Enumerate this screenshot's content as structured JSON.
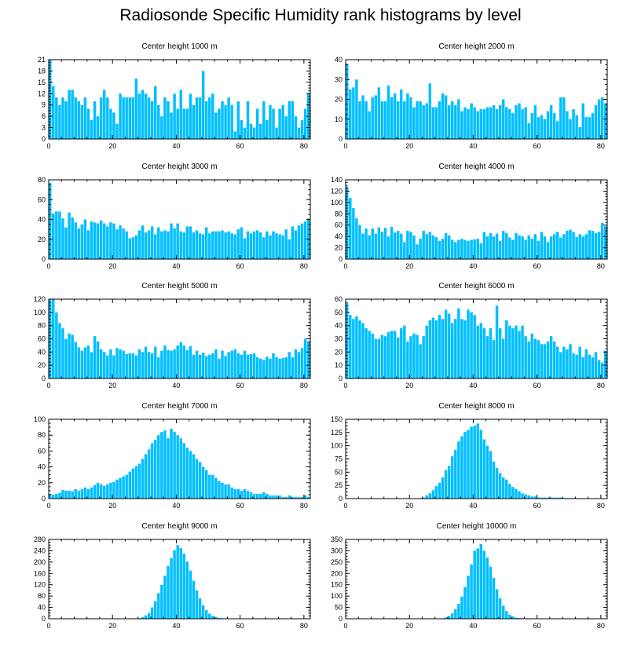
{
  "page_title": "Radiosonde Specific Humidity rank histograms by level",
  "bar_color": "#00BFFF",
  "axis_color": "#000000",
  "chart_data": [
    {
      "type": "bar",
      "title": "Center height 1000 m",
      "xlim": [
        0,
        82
      ],
      "ylim": [
        0,
        21
      ],
      "xticks": [
        0,
        20,
        40,
        60,
        80
      ],
      "yticks": [
        0,
        3,
        6,
        9,
        12,
        15,
        18,
        21
      ],
      "values": [
        21,
        14,
        11,
        9,
        11,
        10,
        13,
        13,
        11,
        10,
        9,
        11,
        8,
        5,
        10,
        6,
        11,
        13,
        11,
        8,
        7,
        4,
        12,
        11,
        11,
        11,
        11,
        16,
        12,
        13,
        12,
        11,
        10,
        14,
        9,
        6,
        11,
        10,
        7,
        12,
        8,
        13,
        8,
        8,
        12,
        9,
        11,
        11,
        18,
        10,
        11,
        12,
        7,
        8,
        10,
        9,
        11,
        9,
        2,
        10,
        5,
        3,
        10,
        4,
        3,
        8,
        4,
        10,
        5,
        9,
        8,
        3,
        8,
        9,
        6,
        10,
        10,
        6,
        3,
        5,
        8,
        12
      ]
    },
    {
      "type": "bar",
      "title": "Center height 2000 m",
      "xlim": [
        0,
        82
      ],
      "ylim": [
        0,
        40
      ],
      "xticks": [
        0,
        20,
        40,
        60,
        80
      ],
      "yticks": [
        0,
        10,
        20,
        30,
        40
      ],
      "values": [
        38,
        25,
        26,
        30,
        19,
        22,
        19,
        14,
        21,
        22,
        26,
        19,
        19,
        27,
        21,
        23,
        19,
        25,
        19,
        23,
        21,
        16,
        19,
        19,
        17,
        18,
        28,
        16,
        16,
        19,
        23,
        22,
        17,
        19,
        17,
        20,
        14,
        16,
        15,
        18,
        16,
        14,
        15,
        15,
        16,
        16,
        17,
        15,
        17,
        20,
        16,
        15,
        13,
        17,
        18,
        15,
        16,
        8,
        13,
        17,
        11,
        12,
        10,
        14,
        17,
        13,
        9,
        21,
        21,
        14,
        10,
        15,
        12,
        6,
        18,
        11,
        11,
        13,
        17,
        20,
        21,
        18
      ]
    },
    {
      "type": "bar",
      "title": "Center height 3000 m",
      "xlim": [
        0,
        82
      ],
      "ylim": [
        0,
        80
      ],
      "xticks": [
        0,
        20,
        40,
        60,
        80
      ],
      "yticks": [
        0,
        20,
        40,
        60,
        80
      ],
      "values": [
        77,
        46,
        48,
        48,
        41,
        32,
        47,
        42,
        37,
        31,
        35,
        40,
        29,
        38,
        37,
        36,
        39,
        36,
        33,
        37,
        36,
        30,
        34,
        31,
        28,
        21,
        22,
        24,
        29,
        34,
        27,
        29,
        33,
        25,
        32,
        28,
        29,
        28,
        36,
        31,
        36,
        28,
        27,
        33,
        33,
        27,
        29,
        26,
        25,
        32,
        26,
        28,
        28,
        28,
        29,
        27,
        28,
        26,
        25,
        30,
        32,
        21,
        28,
        26,
        28,
        29,
        27,
        22,
        28,
        24,
        28,
        26,
        25,
        24,
        30,
        20,
        33,
        29,
        34,
        36,
        38,
        41
      ]
    },
    {
      "type": "bar",
      "title": "Center height 4000 m",
      "xlim": [
        0,
        82
      ],
      "ylim": [
        0,
        140
      ],
      "xticks": [
        0,
        20,
        40,
        60,
        80
      ],
      "yticks": [
        0,
        20,
        40,
        60,
        80,
        100,
        120,
        140
      ],
      "values": [
        128,
        108,
        90,
        72,
        60,
        45,
        54,
        42,
        54,
        45,
        56,
        48,
        55,
        40,
        57,
        47,
        50,
        45,
        30,
        50,
        48,
        42,
        26,
        36,
        50,
        44,
        48,
        42,
        39,
        32,
        36,
        46,
        42,
        34,
        30,
        34,
        36,
        34,
        32,
        34,
        35,
        36,
        28,
        48,
        40,
        46,
        40,
        45,
        32,
        50,
        46,
        38,
        34,
        46,
        42,
        40,
        34,
        42,
        36,
        44,
        32,
        48,
        40,
        30,
        40,
        44,
        48,
        38,
        44,
        50,
        52,
        48,
        39,
        44,
        40,
        44,
        51,
        50,
        46,
        48,
        64,
        58
      ]
    },
    {
      "type": "bar",
      "title": "Center height 5000 m",
      "xlim": [
        0,
        82
      ],
      "ylim": [
        0,
        120
      ],
      "xticks": [
        0,
        20,
        40,
        60,
        80
      ],
      "yticks": [
        0,
        20,
        40,
        60,
        80,
        100,
        120
      ],
      "values": [
        120,
        120,
        100,
        84,
        76,
        60,
        68,
        66,
        55,
        47,
        42,
        47,
        50,
        40,
        64,
        56,
        44,
        40,
        35,
        44,
        35,
        46,
        44,
        42,
        37,
        38,
        38,
        35,
        44,
        40,
        48,
        40,
        38,
        48,
        32,
        42,
        50,
        43,
        42,
        44,
        50,
        55,
        50,
        43,
        49,
        36,
        42,
        36,
        39,
        34,
        36,
        38,
        44,
        30,
        42,
        34,
        40,
        42,
        44,
        38,
        36,
        42,
        36,
        37,
        38,
        32,
        30,
        28,
        33,
        30,
        38,
        32,
        30,
        31,
        32,
        40,
        32,
        44,
        40,
        46,
        60,
        56
      ]
    },
    {
      "type": "bar",
      "title": "Center height 6000 m",
      "xlim": [
        0,
        82
      ],
      "ylim": [
        0,
        60
      ],
      "xticks": [
        0,
        20,
        40,
        60,
        80
      ],
      "yticks": [
        0,
        10,
        20,
        30,
        40,
        50,
        60
      ],
      "values": [
        57,
        48,
        45,
        47,
        44,
        42,
        38,
        36,
        34,
        30,
        30,
        33,
        32,
        35,
        36,
        36,
        31,
        38,
        40,
        28,
        32,
        34,
        33,
        26,
        32,
        40,
        44,
        46,
        44,
        48,
        45,
        52,
        49,
        42,
        45,
        53,
        45,
        44,
        52,
        50,
        48,
        40,
        42,
        38,
        32,
        38,
        29,
        55,
        38,
        30,
        44,
        40,
        38,
        40,
        36,
        40,
        32,
        28,
        34,
        30,
        29,
        26,
        26,
        28,
        32,
        28,
        24,
        20,
        24,
        22,
        26,
        19,
        18,
        24,
        16,
        22,
        18,
        16,
        20,
        14,
        12,
        21
      ]
    },
    {
      "type": "bar",
      "title": "Center height 7000 m",
      "xlim": [
        0,
        82
      ],
      "ylim": [
        0,
        100
      ],
      "xticks": [
        0,
        20,
        40,
        60,
        80
      ],
      "yticks": [
        0,
        20,
        40,
        60,
        80,
        100
      ],
      "values": [
        6,
        5,
        6,
        7,
        11,
        10,
        10,
        9,
        12,
        10,
        12,
        14,
        12,
        14,
        17,
        20,
        18,
        16,
        18,
        20,
        21,
        24,
        26,
        28,
        30,
        34,
        38,
        41,
        44,
        50,
        56,
        62,
        70,
        74,
        80,
        84,
        86,
        76,
        88,
        84,
        80,
        76,
        70,
        64,
        60,
        56,
        50,
        46,
        40,
        36,
        30,
        30,
        26,
        22,
        20,
        18,
        18,
        14,
        12,
        12,
        10,
        12,
        10,
        8,
        6,
        6,
        6,
        8,
        6,
        4,
        4,
        4,
        4,
        2,
        2,
        4,
        2,
        2,
        2,
        2,
        4,
        2
      ]
    },
    {
      "type": "bar",
      "title": "Center height 8000 m",
      "xlim": [
        0,
        82
      ],
      "ylim": [
        0,
        150
      ],
      "xticks": [
        0,
        20,
        40,
        60,
        80
      ],
      "yticks": [
        0,
        25,
        50,
        75,
        100,
        125,
        150
      ],
      "values": [
        0,
        0,
        0,
        0,
        0,
        0,
        0,
        0,
        0,
        0,
        0,
        0,
        0,
        0,
        0,
        0,
        0,
        0,
        0,
        0,
        0,
        0,
        0,
        1,
        2,
        6,
        10,
        16,
        24,
        30,
        40,
        54,
        62,
        80,
        92,
        108,
        118,
        126,
        130,
        136,
        138,
        142,
        130,
        112,
        100,
        90,
        70,
        58,
        48,
        40,
        36,
        28,
        22,
        18,
        14,
        10,
        8,
        6,
        4,
        4,
        2,
        2,
        2,
        2,
        2,
        2,
        2,
        2,
        1,
        1,
        1,
        1,
        1,
        0,
        0,
        0,
        0,
        0,
        0,
        0,
        0,
        0
      ]
    },
    {
      "type": "bar",
      "title": "Center height 9000 m",
      "xlim": [
        0,
        82
      ],
      "ylim": [
        0,
        280
      ],
      "xticks": [
        0,
        20,
        40,
        60,
        80
      ],
      "yticks": [
        0,
        40,
        80,
        120,
        160,
        200,
        240,
        280
      ],
      "values": [
        0,
        0,
        0,
        0,
        0,
        0,
        0,
        0,
        0,
        0,
        0,
        0,
        0,
        0,
        0,
        0,
        0,
        0,
        0,
        0,
        0,
        0,
        0,
        0,
        0,
        0,
        0,
        0,
        2,
        6,
        12,
        20,
        40,
        62,
        90,
        120,
        152,
        186,
        214,
        242,
        260,
        250,
        230,
        202,
        170,
        134,
        100,
        72,
        48,
        30,
        18,
        10,
        6,
        3,
        2,
        1,
        0,
        0,
        0,
        0,
        0,
        0,
        0,
        0,
        0,
        0,
        0,
        0,
        0,
        0,
        0,
        0,
        0,
        0,
        0,
        0,
        0,
        0,
        0,
        0,
        0,
        0
      ]
    },
    {
      "type": "bar",
      "title": "Center height 10000 m",
      "xlim": [
        0,
        82
      ],
      "ylim": [
        0,
        350
      ],
      "xticks": [
        0,
        20,
        40,
        60,
        80
      ],
      "yticks": [
        0,
        50,
        100,
        150,
        200,
        250,
        300,
        350
      ],
      "values": [
        0,
        0,
        0,
        0,
        0,
        0,
        0,
        0,
        0,
        0,
        0,
        0,
        0,
        0,
        0,
        0,
        0,
        0,
        0,
        0,
        0,
        0,
        0,
        0,
        0,
        0,
        0,
        0,
        0,
        0,
        2,
        6,
        12,
        24,
        42,
        66,
        98,
        140,
        190,
        240,
        300,
        310,
        330,
        300,
        270,
        230,
        180,
        130,
        90,
        58,
        34,
        18,
        10,
        5,
        3,
        2,
        1,
        0,
        0,
        0,
        0,
        0,
        0,
        0,
        0,
        0,
        0,
        0,
        0,
        0,
        0,
        0,
        0,
        0,
        0,
        0,
        0,
        0,
        0,
        0,
        0,
        0
      ]
    }
  ]
}
